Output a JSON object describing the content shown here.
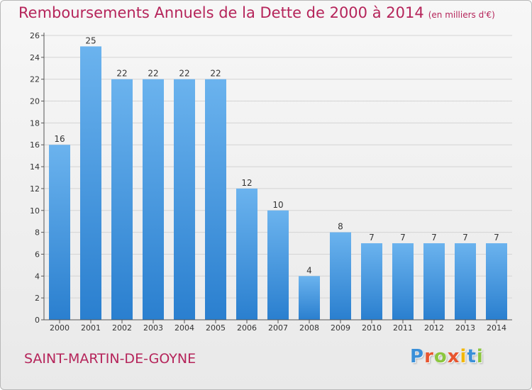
{
  "header": {
    "title": "Remboursements Annuels de la Dette de 2000 à 2014",
    "unit": "(en milliers d'€)"
  },
  "footer": {
    "commune": "SAINT-MARTIN-DE-GOYNE",
    "logo_letters": [
      "P",
      "r",
      "o",
      "x",
      "i",
      "t",
      "i"
    ],
    "logo_colors": [
      "#3a8fd8",
      "#e8552f",
      "#8cc63f",
      "#e8552f",
      "#f2b705",
      "#3a8fd8",
      "#8cc63f"
    ]
  },
  "colors": {
    "bar_top": "#6bb3ee",
    "bar_bottom": "#2a7fcf",
    "accent": "#b5245a",
    "axis": "#555555",
    "grid": "#d4d4d4"
  },
  "chart_data": {
    "type": "bar",
    "categories": [
      "2000",
      "2001",
      "2002",
      "2003",
      "2004",
      "2005",
      "2006",
      "2007",
      "2008",
      "2009",
      "2010",
      "2011",
      "2012",
      "2013",
      "2014"
    ],
    "values": [
      16,
      25,
      22,
      22,
      22,
      22,
      12,
      10,
      4,
      8,
      7,
      7,
      7,
      7,
      7
    ],
    "data_labels": [
      "16",
      "25",
      "22",
      "22",
      "22",
      "22",
      "12",
      "10",
      "4",
      "8",
      "7",
      "7",
      "7",
      "7",
      "7"
    ],
    "yticks": [
      0,
      2,
      4,
      6,
      8,
      10,
      12,
      14,
      16,
      18,
      20,
      22,
      24,
      26
    ],
    "ylim": [
      0,
      26
    ],
    "grid": true,
    "legend": "none"
  }
}
